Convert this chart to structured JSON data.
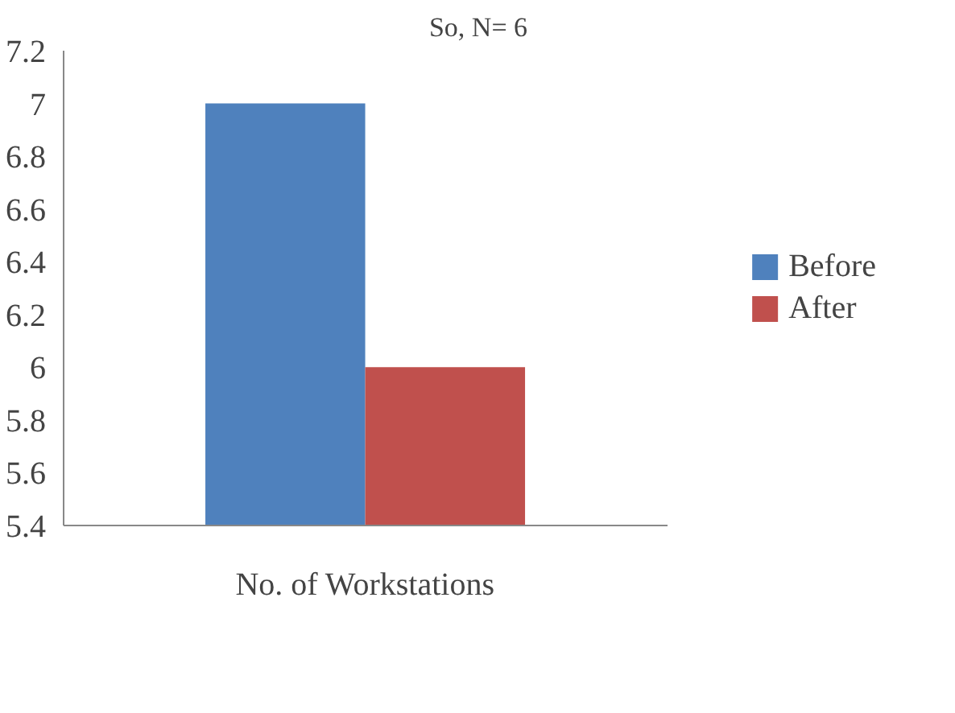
{
  "chart_data": {
    "type": "bar",
    "title": "So, N= 6",
    "categories": [
      "No. of Workstations"
    ],
    "series": [
      {
        "name": "Before",
        "color": "#4f81bd",
        "values": [
          7
        ]
      },
      {
        "name": "After",
        "color": "#c0504d",
        "values": [
          6
        ]
      }
    ],
    "ylim": [
      5.4,
      7.2
    ],
    "yticks": [
      5.4,
      5.6,
      5.8,
      6,
      6.2,
      6.4,
      6.6,
      6.8,
      7,
      7.2
    ],
    "grid": false,
    "legend": "right"
  }
}
